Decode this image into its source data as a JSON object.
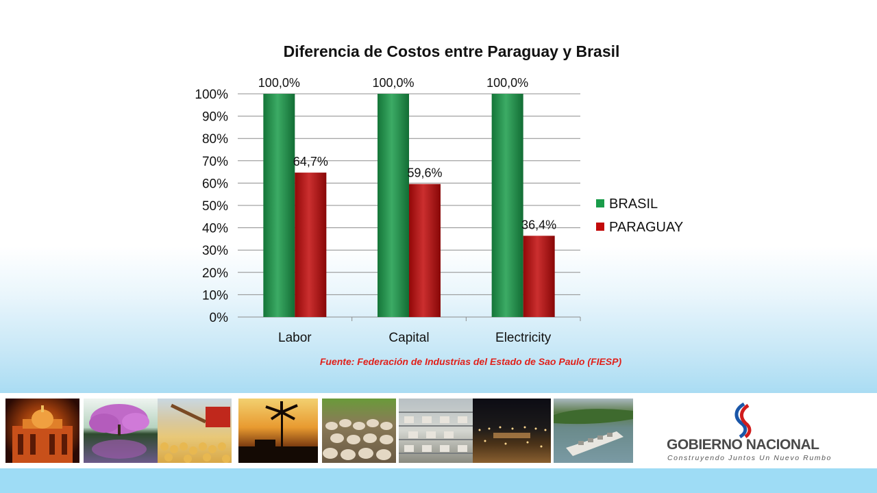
{
  "chart_data": {
    "type": "bar",
    "title": "Diferencia de Costos entre Paraguay y Brasil",
    "categories": [
      "Labor",
      "Capital",
      "Electricity"
    ],
    "series": [
      {
        "name": "BRASIL",
        "values": [
          100.0,
          100.0,
          100.0
        ],
        "labels": [
          "100,0%",
          "100,0%",
          "100,0%"
        ],
        "color": "#1a9c4a"
      },
      {
        "name": "PARAGUAY",
        "values": [
          64.7,
          59.6,
          36.4
        ],
        "labels": [
          "64,7%",
          "59,6%",
          "36,4%"
        ],
        "color": "#c20a0a"
      }
    ],
    "ylim": [
      0,
      100
    ],
    "yticks": [
      "0%",
      "10%",
      "20%",
      "30%",
      "40%",
      "50%",
      "60%",
      "70%",
      "80%",
      "90%",
      "100%"
    ],
    "grid": true,
    "legend": "right",
    "source": "Fuente: Federación de Industrias del Estado de Sao Paulo (FIESP)"
  },
  "footer": {
    "photos": [
      "palace",
      "lapacho-tree",
      "soybeans-harvest",
      "palm-sunset",
      "cattle-herd",
      "factory-floor",
      "port-night",
      "river-barge"
    ],
    "logo": {
      "main_left": "GOBIERNO",
      "main_right": "NACIONAL",
      "tagline": "Construyendo Juntos Un Nuevo Rumbo"
    }
  }
}
